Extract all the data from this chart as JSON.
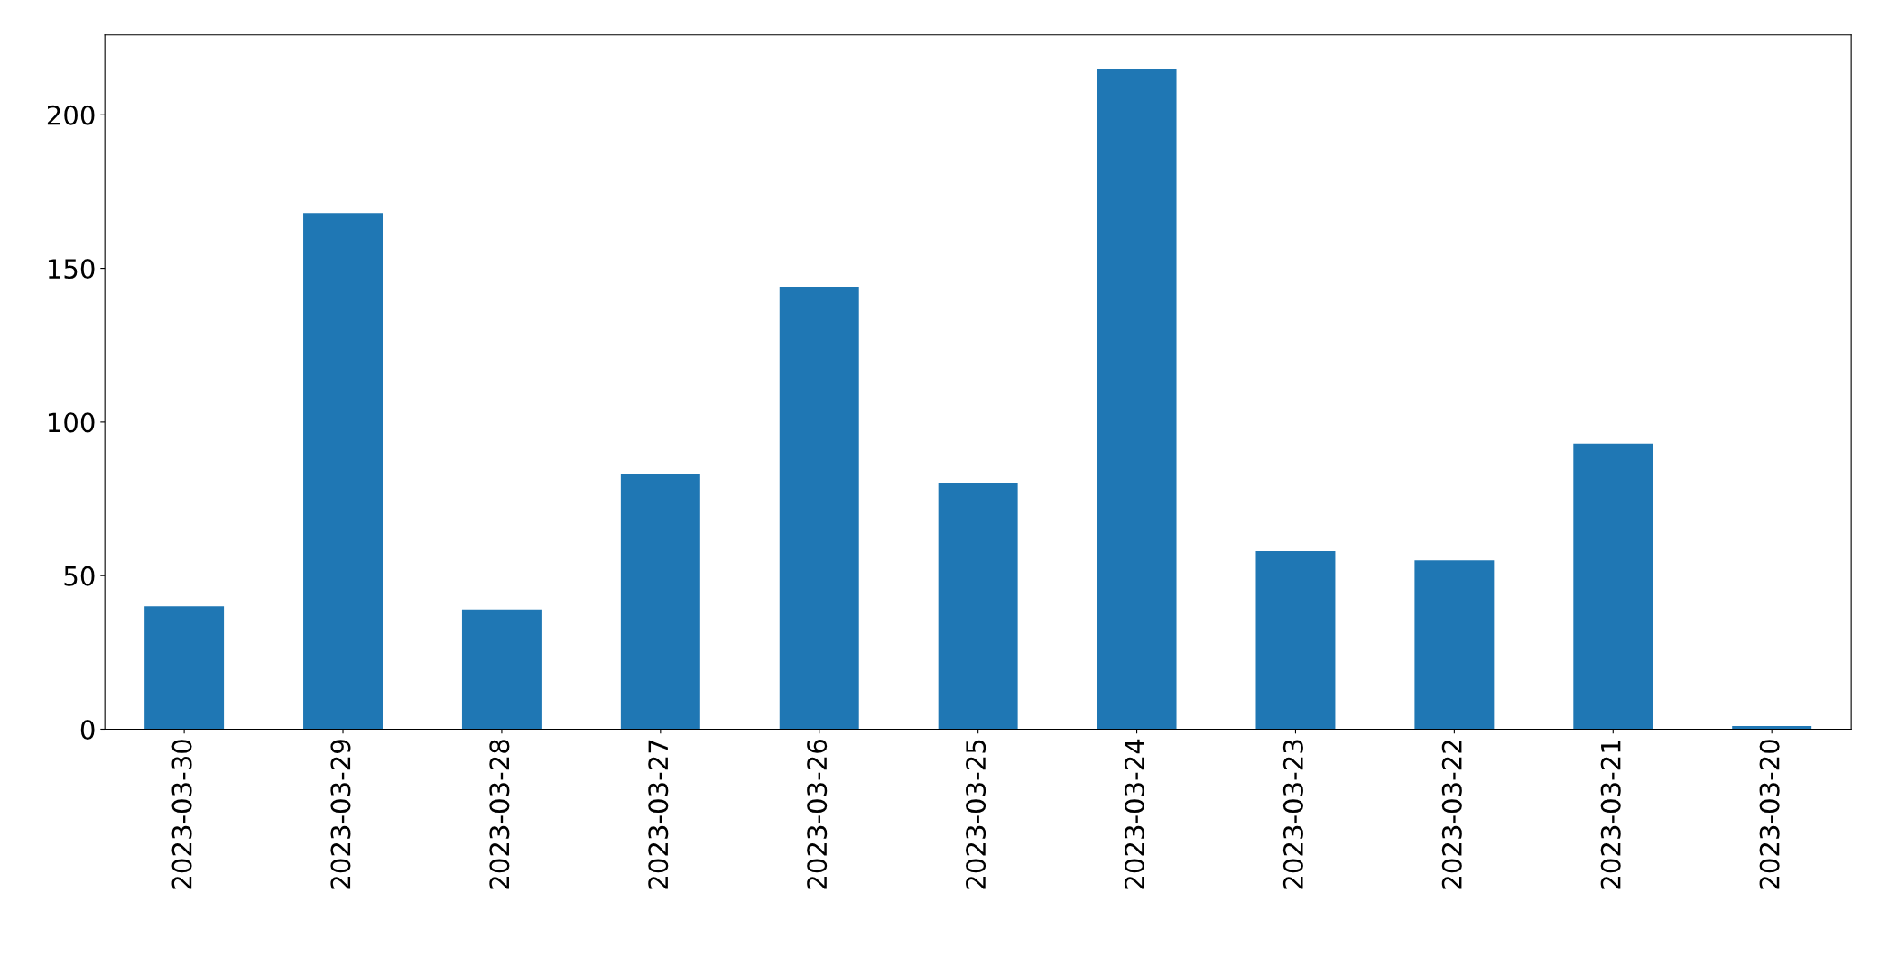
{
  "chart_data": {
    "type": "bar",
    "categories": [
      "2023-03-30",
      "2023-03-29",
      "2023-03-28",
      "2023-03-27",
      "2023-03-26",
      "2023-03-25",
      "2023-03-24",
      "2023-03-23",
      "2023-03-22",
      "2023-03-21",
      "2023-03-20"
    ],
    "values": [
      40,
      168,
      39,
      83,
      144,
      80,
      215,
      58,
      55,
      93,
      1
    ],
    "color": "#1f77b4",
    "ylim": [
      0,
      226
    ],
    "yticks": [
      0,
      50,
      100,
      150,
      200
    ],
    "grid": false,
    "legend": false
  }
}
